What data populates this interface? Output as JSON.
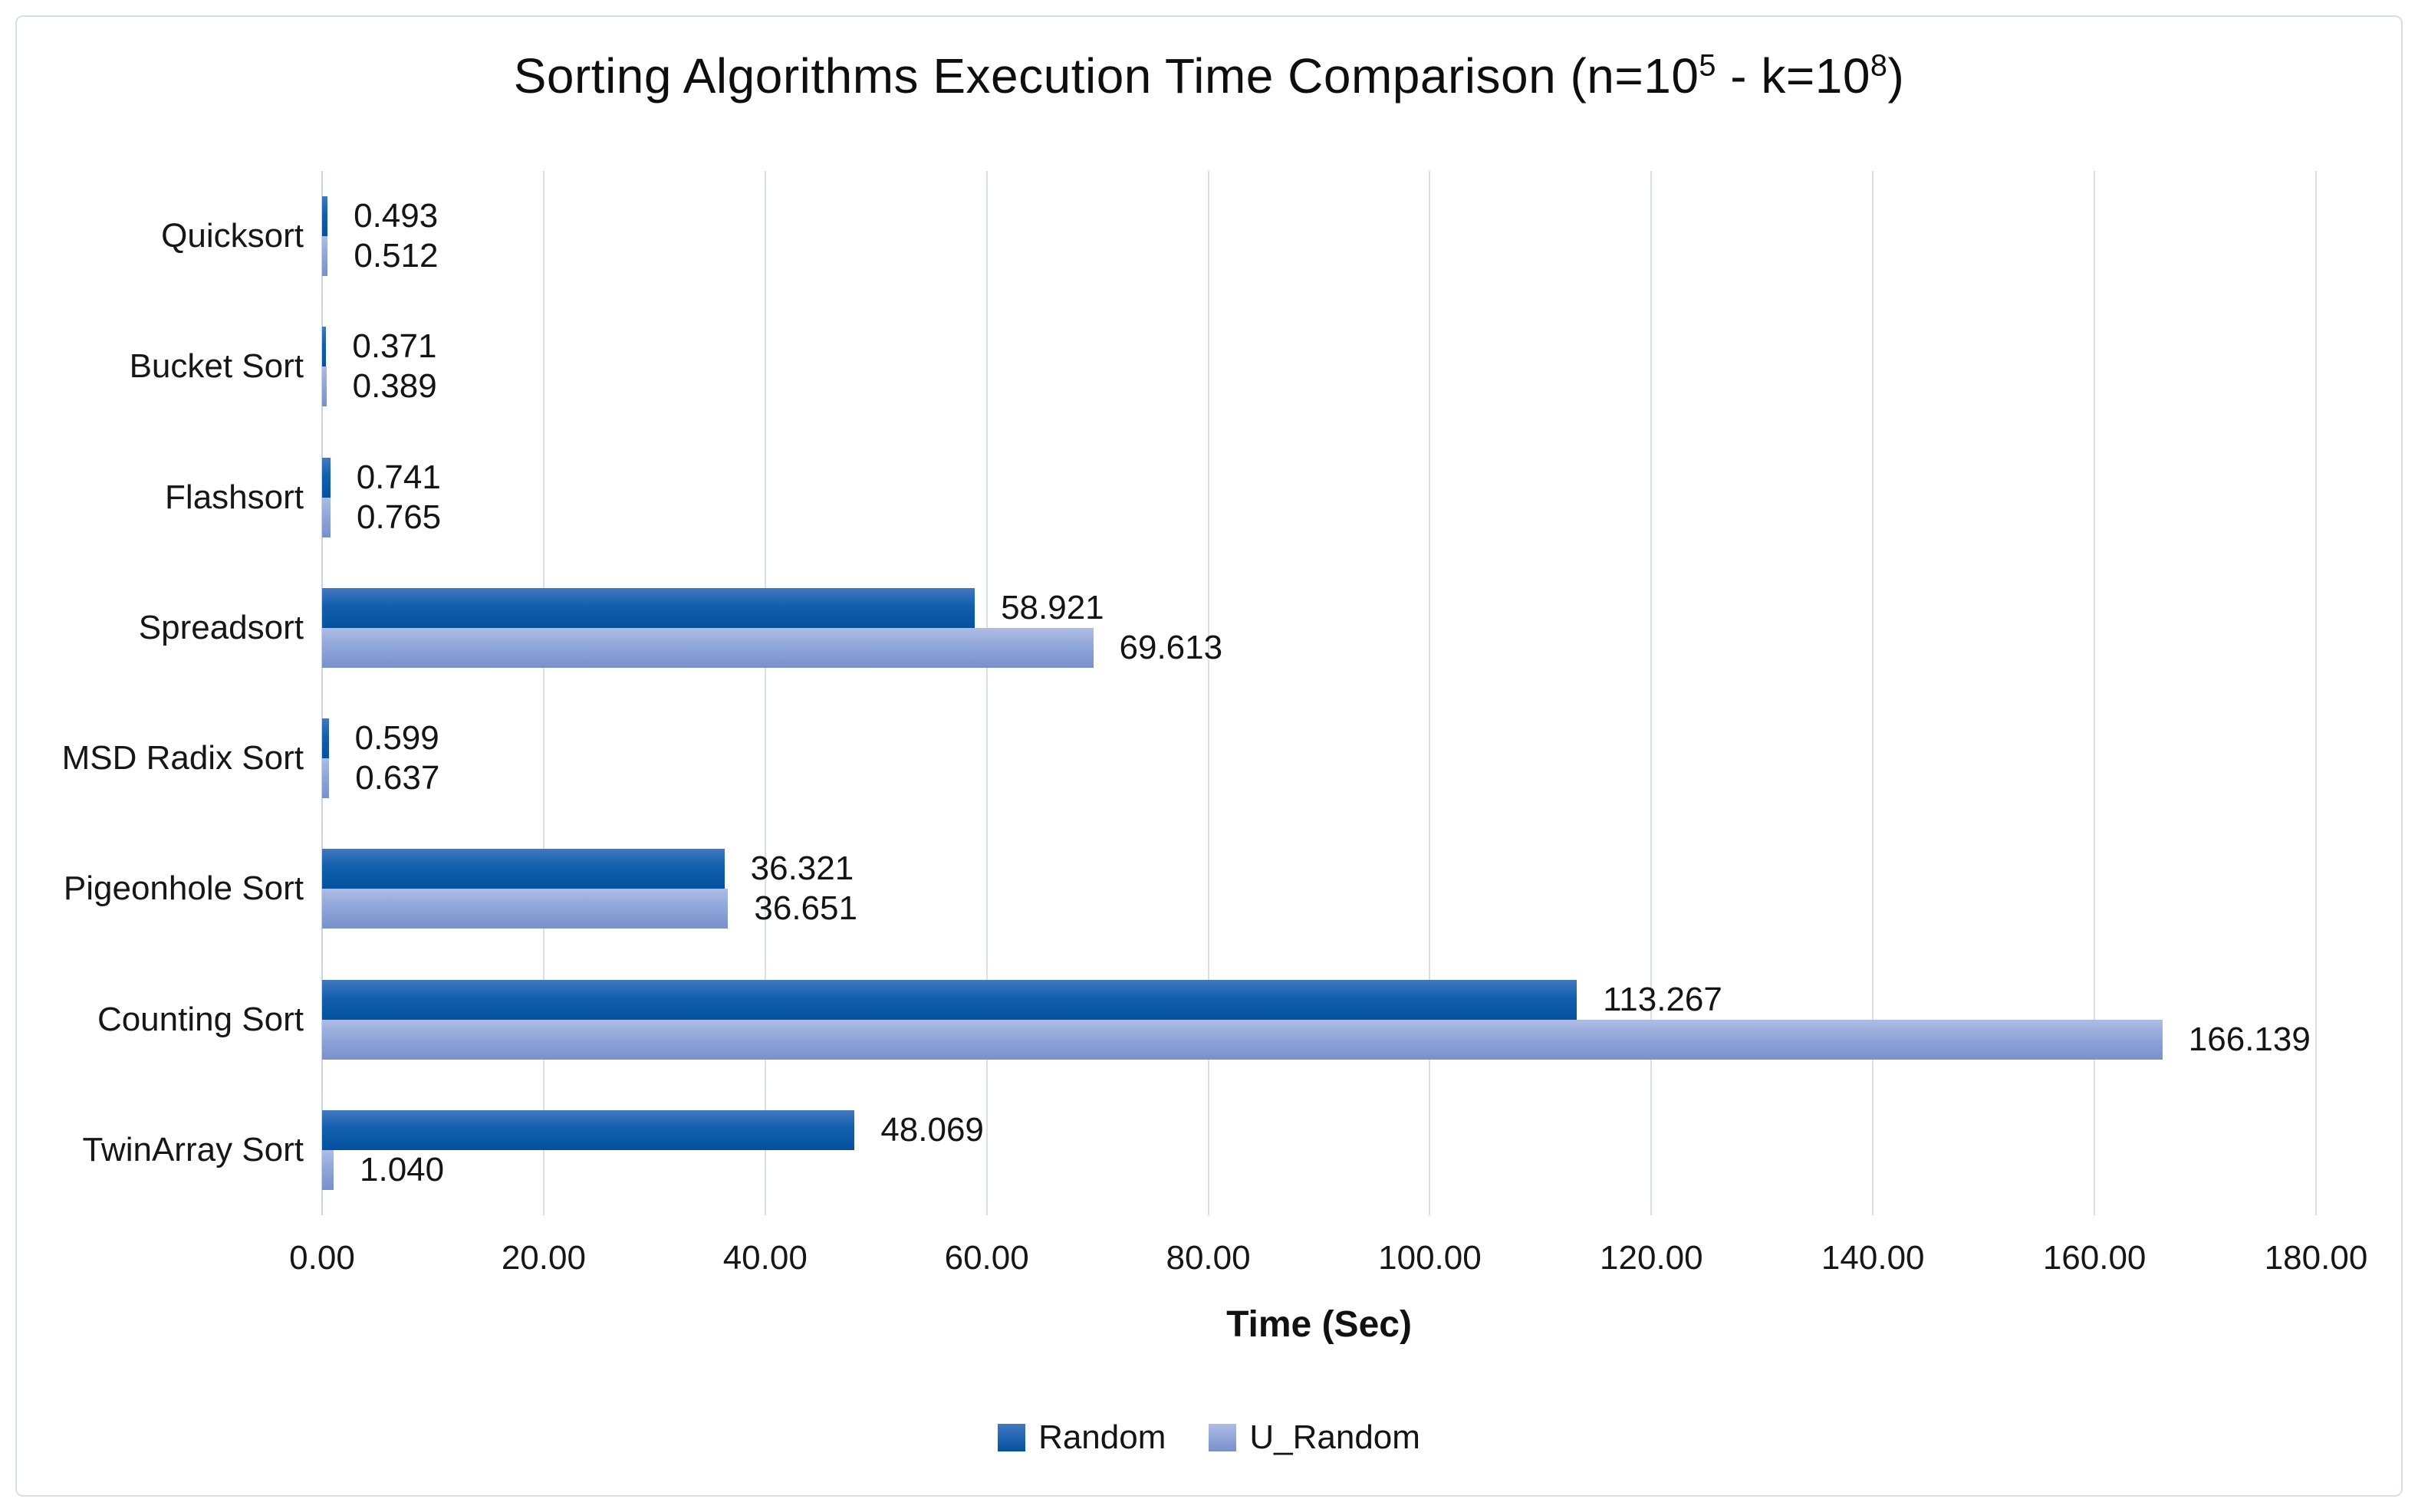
{
  "chart_data": {
    "type": "bar",
    "orientation": "horizontal",
    "title_parts": {
      "prefix": "Sorting Algorithms Execution Time Comparison (n=10",
      "sup1": "5",
      "mid": " - k=10",
      "sup2": "8",
      "suffix": ")"
    },
    "title_text": "Sorting Algorithms Execution Time Comparison (n=10⁵ - k=10⁸)",
    "categories": [
      "Quicksort",
      "Bucket Sort",
      "Flashsort",
      "Spreadsort",
      "MSD Radix Sort",
      "Pigeonhole Sort",
      "Counting Sort",
      "TwinArray Sort"
    ],
    "series": [
      {
        "name": "Random",
        "color_top": "#4279C0",
        "color_mid": "#115FAD",
        "color_bottom": "#03519F",
        "values": [
          0.493,
          0.371,
          0.741,
          58.921,
          0.599,
          36.321,
          113.267,
          48.069
        ],
        "labels": [
          "0.493",
          "0.371",
          "0.741",
          "58.921",
          "0.599",
          "36.321",
          "113.267",
          "48.069"
        ]
      },
      {
        "name": "U_Random",
        "color_top": "#AEBCE5",
        "color_mid": "#90A7DA",
        "color_bottom": "#7890CB",
        "values": [
          0.512,
          0.389,
          0.765,
          69.613,
          0.637,
          36.651,
          166.139,
          1.04
        ],
        "labels": [
          "0.512",
          "0.389",
          "0.765",
          "69.613",
          "0.637",
          "36.651",
          "166.139",
          "1.040"
        ]
      }
    ],
    "xlabel": "Time (Sec)",
    "x_ticks": [
      "0.00",
      "20.00",
      "40.00",
      "60.00",
      "80.00",
      "100.00",
      "120.00",
      "140.00",
      "160.00",
      "180.00"
    ],
    "xlim": [
      0,
      180
    ],
    "grid": true,
    "grid_color": "#d8dfe9",
    "axis_line_color": "#c9d4e6",
    "legend_position": "bottom"
  }
}
